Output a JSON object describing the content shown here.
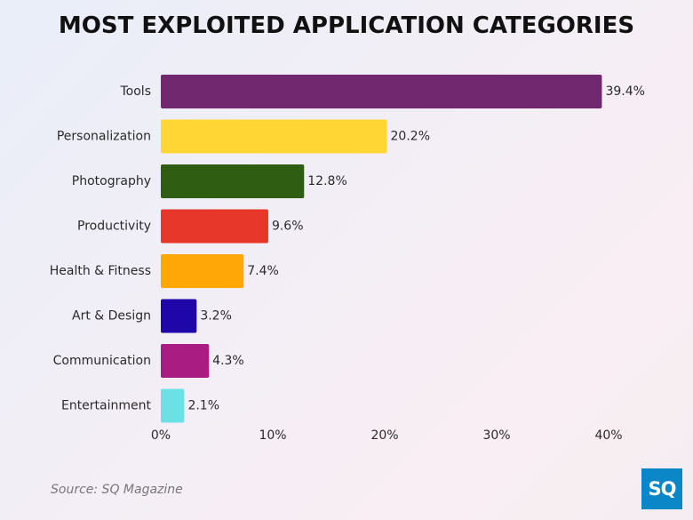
{
  "title": "MOST EXPLOITED APPLICATION CATEGORIES",
  "source": "Source: SQ Magazine",
  "logo_text": "SQ",
  "chart_data": {
    "type": "bar",
    "orientation": "horizontal",
    "title": "MOST EXPLOITED APPLICATION CATEGORIES",
    "categories": [
      "Tools",
      "Personalization",
      "Photography",
      "Productivity",
      "Health & Fitness",
      "Art & Design",
      "Communication",
      "Entertainment"
    ],
    "values": [
      39.4,
      20.2,
      12.8,
      9.6,
      7.4,
      3.2,
      4.3,
      2.1
    ],
    "value_labels": [
      "39.4%",
      "20.2%",
      "12.8%",
      "9.6%",
      "7.4%",
      "3.2%",
      "4.3%",
      "2.1%"
    ],
    "colors": [
      "#72286f",
      "#ffd634",
      "#2f5e13",
      "#e7362a",
      "#ffa707",
      "#1f06a9",
      "#a91c82",
      "#6be1e6"
    ],
    "xlim": [
      0,
      40
    ],
    "xticks": [
      0,
      10,
      20,
      30,
      40
    ],
    "xtick_labels": [
      "0%",
      "10%",
      "20%",
      "30%",
      "40%"
    ],
    "xlabel": "",
    "ylabel": "",
    "grid": false,
    "legend": "none"
  }
}
